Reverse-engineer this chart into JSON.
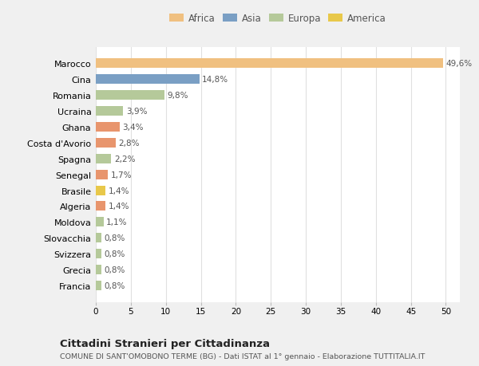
{
  "categories": [
    "Francia",
    "Grecia",
    "Svizzera",
    "Slovacchia",
    "Moldova",
    "Algeria",
    "Brasile",
    "Senegal",
    "Spagna",
    "Costa d'Avorio",
    "Ghana",
    "Ucraina",
    "Romania",
    "Cina",
    "Marocco"
  ],
  "values": [
    0.8,
    0.8,
    0.8,
    0.8,
    1.1,
    1.4,
    1.4,
    1.7,
    2.2,
    2.8,
    3.4,
    3.9,
    9.8,
    14.8,
    49.6
  ],
  "labels": [
    "0,8%",
    "0,8%",
    "0,8%",
    "0,8%",
    "1,1%",
    "1,4%",
    "1,4%",
    "1,7%",
    "2,2%",
    "2,8%",
    "3,4%",
    "3,9%",
    "9,8%",
    "14,8%",
    "49,6%"
  ],
  "colors": [
    "#b5c99a",
    "#b5c99a",
    "#b5c99a",
    "#b5c99a",
    "#b5c99a",
    "#e8956d",
    "#e8c84a",
    "#e8956d",
    "#b5c99a",
    "#e8956d",
    "#e8956d",
    "#b5c99a",
    "#b5c99a",
    "#7a9fc4",
    "#f0c080"
  ],
  "legend": [
    {
      "label": "Africa",
      "color": "#f0c080"
    },
    {
      "label": "Asia",
      "color": "#7a9fc4"
    },
    {
      "label": "Europa",
      "color": "#b5c99a"
    },
    {
      "label": "America",
      "color": "#e8c84a"
    }
  ],
  "xlim": [
    0,
    52
  ],
  "xticks": [
    0,
    5,
    10,
    15,
    20,
    25,
    30,
    35,
    40,
    45,
    50
  ],
  "title": "Cittadini Stranieri per Cittadinanza",
  "subtitle": "COMUNE DI SANT'OMOBONO TERME (BG) - Dati ISTAT al 1° gennaio - Elaborazione TUTTITALIA.IT",
  "background_color": "#f0f0f0",
  "bar_background": "#ffffff",
  "grid_color": "#e0e0e0"
}
